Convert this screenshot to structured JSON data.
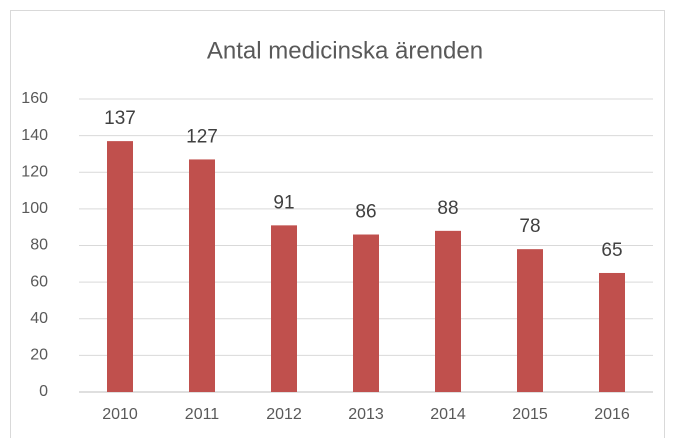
{
  "chart_data": {
    "type": "bar",
    "title": "Antal medicinska ärenden",
    "categories": [
      "2010",
      "2011",
      "2012",
      "2013",
      "2014",
      "2015",
      "2016"
    ],
    "values": [
      137,
      127,
      91,
      86,
      88,
      78,
      65
    ],
    "color": "#c0504d",
    "ylim": [
      0,
      160
    ],
    "yticks": [
      0,
      20,
      40,
      60,
      80,
      100,
      120,
      140,
      160
    ],
    "grid": true
  }
}
